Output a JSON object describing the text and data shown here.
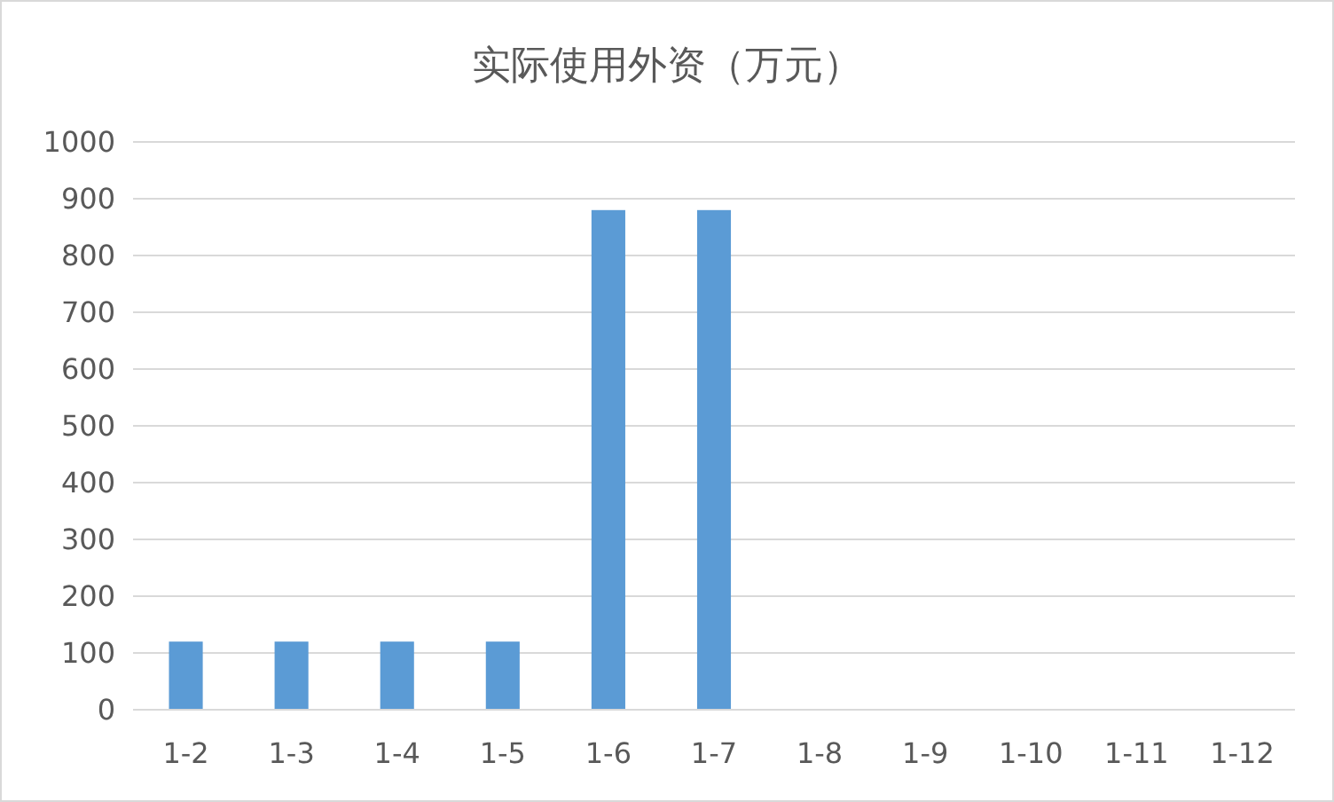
{
  "chart_data": {
    "type": "bar",
    "title": "实际使用外资（万元）",
    "categories": [
      "1-2",
      "1-3",
      "1-4",
      "1-5",
      "1-6",
      "1-7",
      "1-8",
      "1-9",
      "1-10",
      "1-11",
      "1-12"
    ],
    "values": [
      120,
      120,
      120,
      120,
      880,
      880,
      null,
      null,
      null,
      null,
      null
    ],
    "color": "#5b9bd5",
    "ylim": [
      0,
      1000
    ],
    "yticks": [
      0,
      100,
      200,
      300,
      400,
      500,
      600,
      700,
      800,
      900,
      1000
    ],
    "grid": "y"
  }
}
